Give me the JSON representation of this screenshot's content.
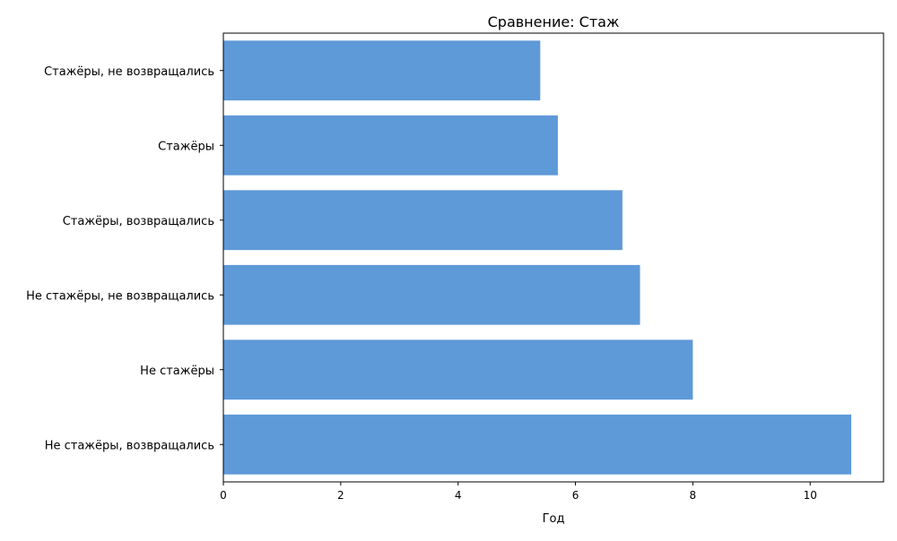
{
  "chart_data": {
    "type": "bar",
    "orientation": "horizontal",
    "title": "Сравнение: Стаж",
    "xlabel": "Год",
    "ylabel": "",
    "categories": [
      "Стажёры, не возвращались",
      "Стажёры",
      "Стажёры, возвращались",
      "Не стажёры, не возвращались",
      "Не стажёры",
      "Не стажёры, возвращались"
    ],
    "values": [
      5.4,
      5.7,
      6.8,
      7.1,
      8.0,
      10.7
    ],
    "xlim": [
      0,
      11.25
    ],
    "xticks": [
      0,
      2,
      4,
      6,
      8,
      10
    ],
    "bar_color": "#5e99d8",
    "grid": false,
    "legend": "none"
  }
}
